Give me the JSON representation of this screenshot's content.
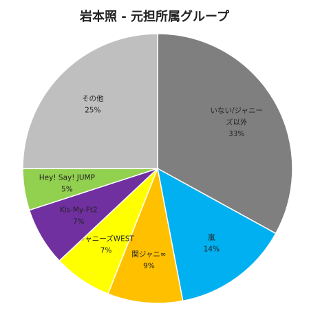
{
  "chart_data": {
    "type": "pie",
    "title": "岩本照 - 元担所属グループ",
    "legend": "none",
    "start_angle_deg": 0,
    "direction": "clockwise",
    "slices": [
      {
        "label_lines": [
          "いない/ジャニー",
          "ズ以外"
        ],
        "value": 33,
        "value_label": "33%",
        "color": "#7f7f7f"
      },
      {
        "label_lines": [
          "嵐"
        ],
        "value": 14,
        "value_label": "14%",
        "color": "#00b0f0"
      },
      {
        "label_lines": [
          "関ジャニ∞"
        ],
        "value": 9,
        "value_label": "9%",
        "color": "#ffc000"
      },
      {
        "label_lines": [
          "ジャニーズWEST"
        ],
        "value": 7,
        "value_label": "7%",
        "color": "#ffff00"
      },
      {
        "label_lines": [
          "Kis-My-Ft2"
        ],
        "value": 7,
        "value_label": "7%",
        "color": "#7030a0"
      },
      {
        "label_lines": [
          "Hey! Say! JUMP"
        ],
        "value": 5,
        "value_label": "5%",
        "color": "#92d050"
      },
      {
        "label_lines": [
          "その他"
        ],
        "value": 25,
        "value_label": "25%",
        "color": "#bfbfbf"
      }
    ]
  }
}
